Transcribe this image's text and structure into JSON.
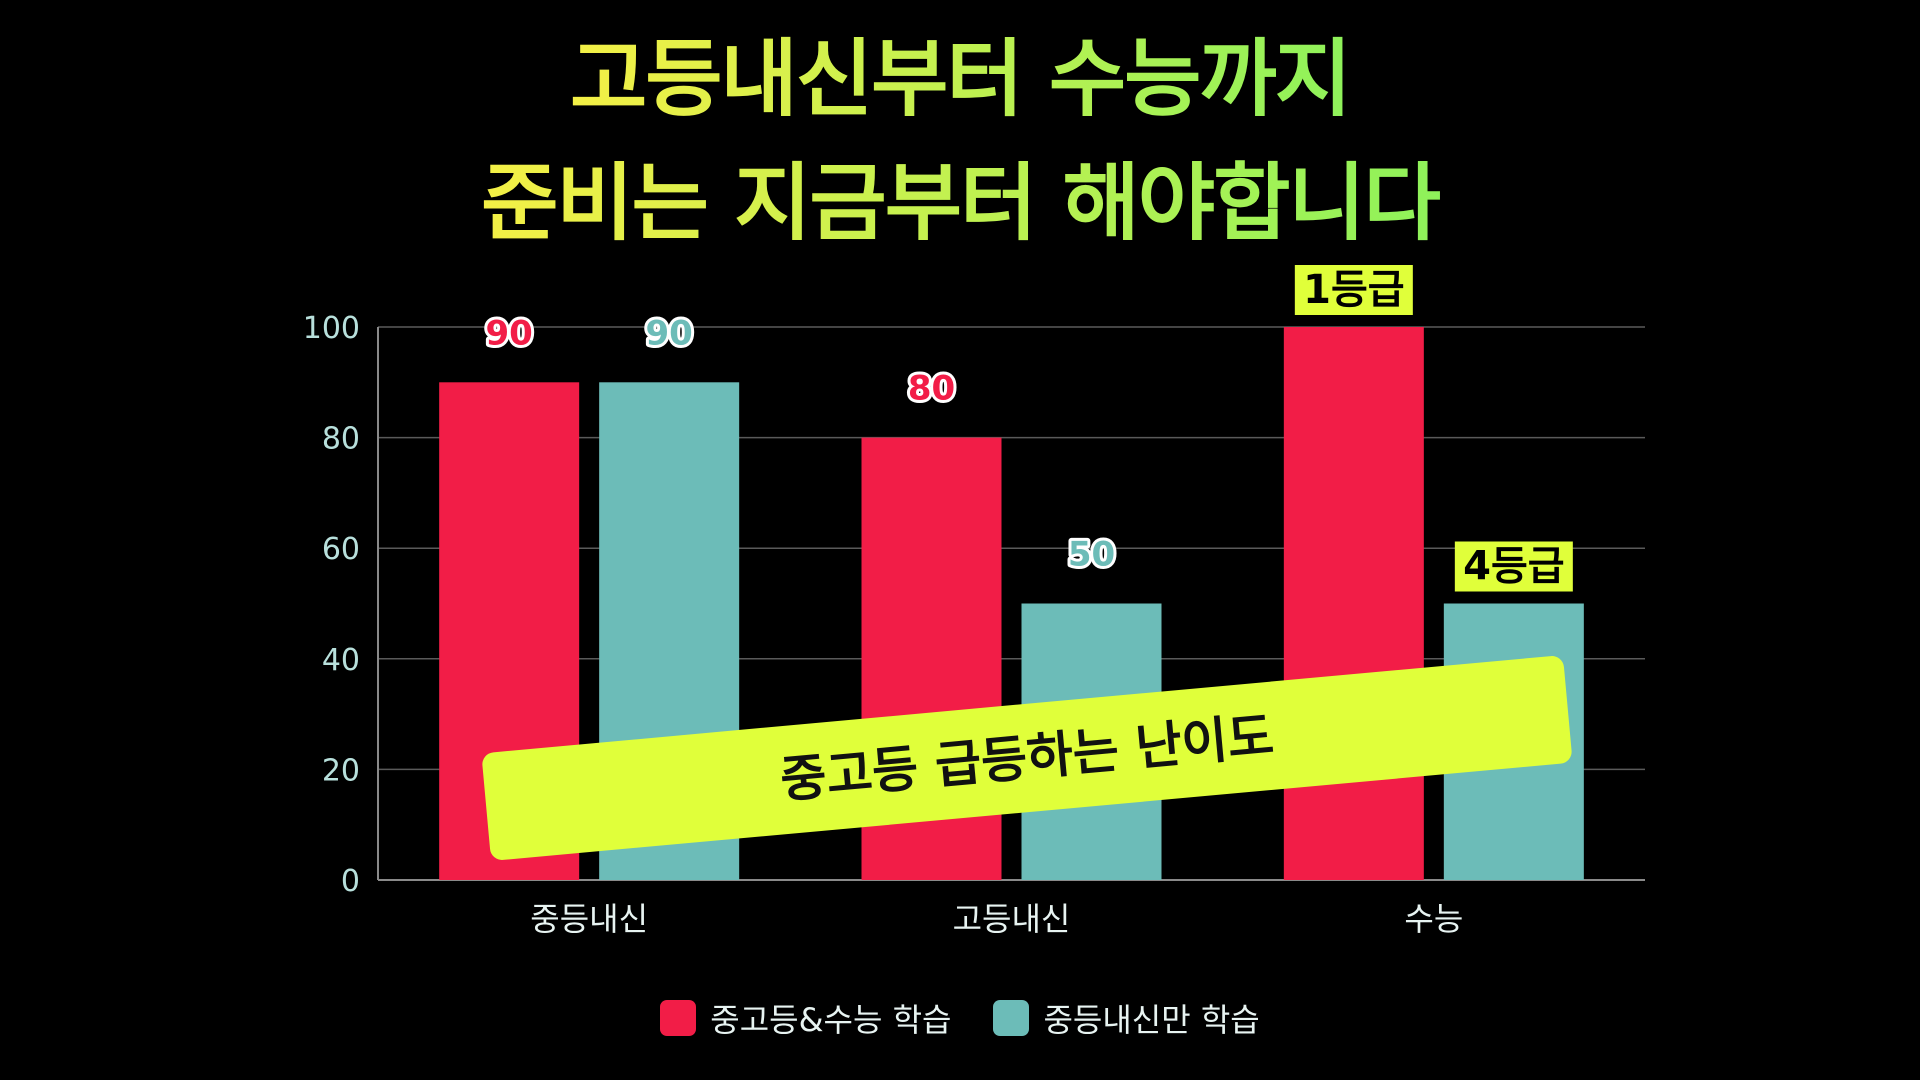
{
  "title": {
    "line1": "고등내신부터 수능까지",
    "line2": "준비는 지금부터 해야합니다",
    "gradient_start": "#f4f046",
    "gradient_end": "#8ef25a"
  },
  "banner": {
    "text": "중고등 급등하는 난이도",
    "color": "#e0ff3a"
  },
  "grade_badges": {
    "top": "1등급",
    "bottom": "4등급",
    "color": "#e0ff3a"
  },
  "legend": {
    "items": [
      {
        "label": "중고등&수능 학습",
        "color": "#f21d47"
      },
      {
        "label": "중등내신만 학습",
        "color": "#6cbcb8"
      }
    ]
  },
  "chart_data": {
    "type": "bar",
    "categories": [
      "중등내신",
      "고등내신",
      "수능"
    ],
    "series": [
      {
        "name": "중고등&수능 학습",
        "values": [
          90,
          80,
          100
        ],
        "color": "#f21d47"
      },
      {
        "name": "중등내신만 학습",
        "values": [
          90,
          50,
          50
        ],
        "color": "#6cbcb8"
      }
    ],
    "data_labels": [
      [
        "90",
        "80",
        ""
      ],
      [
        "90",
        "50",
        ""
      ]
    ],
    "ylim": [
      0,
      100
    ],
    "yticks": [
      0,
      20,
      40,
      60,
      80,
      100
    ],
    "grid": true,
    "legend_position": "bottom"
  }
}
